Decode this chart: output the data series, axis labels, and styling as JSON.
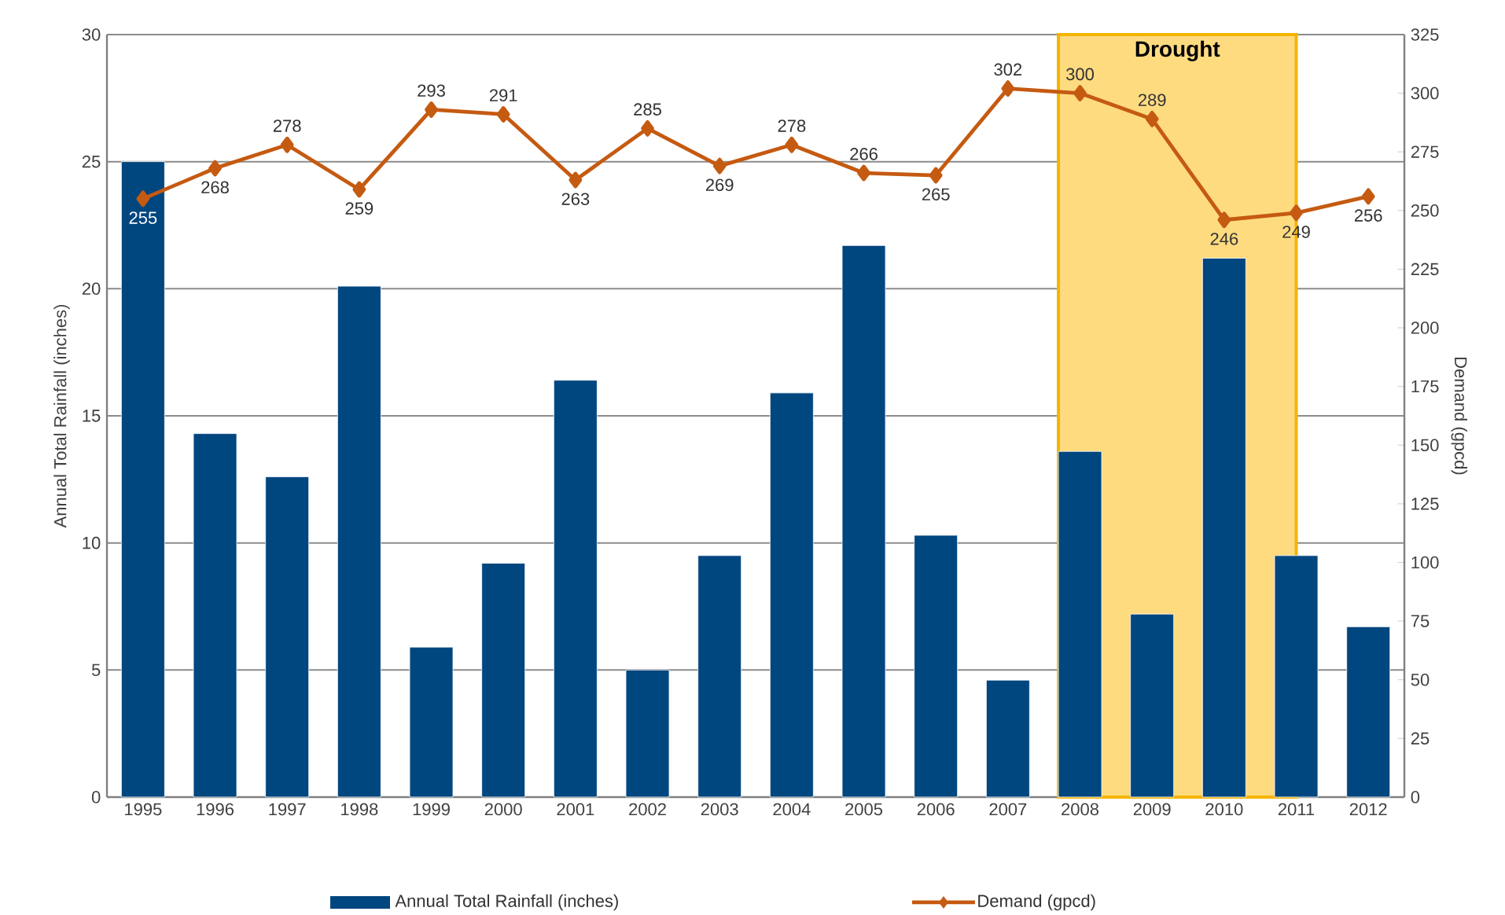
{
  "chart_data": {
    "type": "bar",
    "categories": [
      "1995",
      "1996",
      "1997",
      "1998",
      "1999",
      "2000",
      "2001",
      "2002",
      "2003",
      "2004",
      "2005",
      "2006",
      "2007",
      "2008",
      "2009",
      "2010",
      "2011",
      "2012"
    ],
    "series": [
      {
        "name": "Annual Total Rainfall (inches)",
        "color": "#00467f",
        "values": [
          25.0,
          14.3,
          12.6,
          20.1,
          5.9,
          9.2,
          16.4,
          5.0,
          9.5,
          15.9,
          21.7,
          10.3,
          4.6,
          13.6,
          7.2,
          21.2,
          9.5,
          6.7
        ]
      },
      {
        "name": "Demand (gpcd)",
        "type": "line",
        "axis": "y2",
        "color": "#c55a11",
        "marker": "diamond",
        "values": [
          255,
          268,
          278,
          259,
          293,
          291,
          263,
          285,
          269,
          278,
          266,
          265,
          302,
          300,
          289,
          246,
          249,
          256
        ],
        "value_labels": [
          "255",
          "268",
          "278",
          "259",
          "293",
          "291",
          "263",
          "285",
          "269",
          "278",
          "266",
          "265",
          "302",
          "300",
          "289",
          "246",
          "249",
          "256"
        ]
      }
    ],
    "ylabel": "Annual Total Rainfall (inches)",
    "y2label": "Demand (gpcd)",
    "ylim": [
      0,
      30
    ],
    "yticks": [
      0,
      5,
      10,
      15,
      20,
      25,
      30
    ],
    "y2lim": [
      0,
      325
    ],
    "y2ticks": [
      0,
      25,
      50,
      75,
      100,
      125,
      150,
      175,
      200,
      225,
      250,
      275,
      300,
      325
    ],
    "bands": [
      {
        "axis": "x",
        "from": "2008",
        "to": "2011",
        "label": "Drought",
        "color": "#ffdb80"
      }
    ],
    "grid": "y",
    "legend": "bottom"
  }
}
